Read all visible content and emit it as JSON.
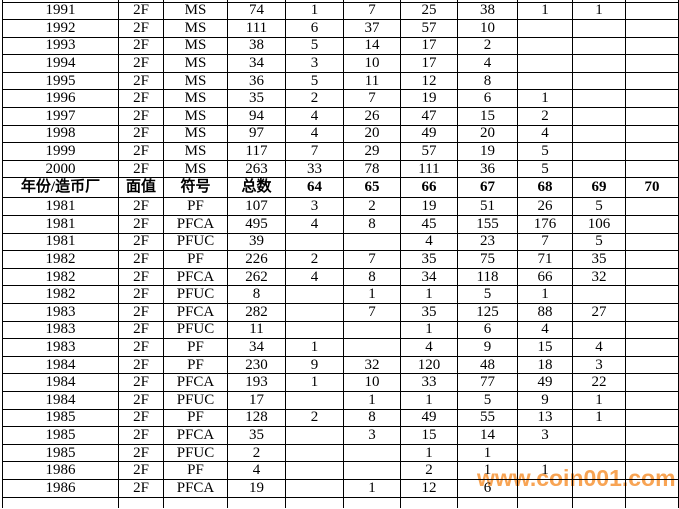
{
  "watermark": {
    "text": "www.coin001.com",
    "color": "#F8A04B"
  },
  "table": {
    "column_headers": [
      "年份/造币厂",
      "面值",
      "符号",
      "总数",
      "64",
      "65",
      "66",
      "67",
      "68",
      "69",
      "70"
    ],
    "rows": [
      {
        "header": false,
        "cells": [
          "1991",
          "2F",
          "MS",
          "74",
          "1",
          "7",
          "25",
          "38",
          "1",
          "1",
          ""
        ]
      },
      {
        "header": false,
        "cells": [
          "1992",
          "2F",
          "MS",
          "111",
          "6",
          "37",
          "57",
          "10",
          "",
          "",
          ""
        ]
      },
      {
        "header": false,
        "cells": [
          "1993",
          "2F",
          "MS",
          "38",
          "5",
          "14",
          "17",
          "2",
          "",
          "",
          ""
        ]
      },
      {
        "header": false,
        "cells": [
          "1994",
          "2F",
          "MS",
          "34",
          "3",
          "10",
          "17",
          "4",
          "",
          "",
          ""
        ]
      },
      {
        "header": false,
        "cells": [
          "1995",
          "2F",
          "MS",
          "36",
          "5",
          "11",
          "12",
          "8",
          "",
          "",
          ""
        ]
      },
      {
        "header": false,
        "cells": [
          "1996",
          "2F",
          "MS",
          "35",
          "2",
          "7",
          "19",
          "6",
          "1",
          "",
          ""
        ]
      },
      {
        "header": false,
        "cells": [
          "1997",
          "2F",
          "MS",
          "94",
          "4",
          "26",
          "47",
          "15",
          "2",
          "",
          ""
        ]
      },
      {
        "header": false,
        "cells": [
          "1998",
          "2F",
          "MS",
          "97",
          "4",
          "20",
          "49",
          "20",
          "4",
          "",
          ""
        ]
      },
      {
        "header": false,
        "cells": [
          "1999",
          "2F",
          "MS",
          "117",
          "7",
          "29",
          "57",
          "19",
          "5",
          "",
          ""
        ]
      },
      {
        "header": false,
        "cells": [
          "2000",
          "2F",
          "MS",
          "263",
          "33",
          "78",
          "111",
          "36",
          "5",
          "",
          ""
        ]
      },
      {
        "header": true,
        "cells": [
          "年份/造币厂",
          "面值",
          "符号",
          "总数",
          "64",
          "65",
          "66",
          "67",
          "68",
          "69",
          "70"
        ]
      },
      {
        "header": false,
        "cells": [
          "1981",
          "2F",
          "PF",
          "107",
          "3",
          "2",
          "19",
          "51",
          "26",
          "5",
          ""
        ]
      },
      {
        "header": false,
        "cells": [
          "1981",
          "2F",
          "PFCA",
          "495",
          "4",
          "8",
          "45",
          "155",
          "176",
          "106",
          ""
        ]
      },
      {
        "header": false,
        "cells": [
          "1981",
          "2F",
          "PFUC",
          "39",
          "",
          "",
          "4",
          "23",
          "7",
          "5",
          ""
        ]
      },
      {
        "header": false,
        "cells": [
          "1982",
          "2F",
          "PF",
          "226",
          "2",
          "7",
          "35",
          "75",
          "71",
          "35",
          ""
        ]
      },
      {
        "header": false,
        "cells": [
          "1982",
          "2F",
          "PFCA",
          "262",
          "4",
          "8",
          "34",
          "118",
          "66",
          "32",
          ""
        ]
      },
      {
        "header": false,
        "cells": [
          "1982",
          "2F",
          "PFUC",
          "8",
          "",
          "1",
          "1",
          "5",
          "1",
          "",
          ""
        ]
      },
      {
        "header": false,
        "cells": [
          "1983",
          "2F",
          "PFCA",
          "282",
          "",
          "7",
          "35",
          "125",
          "88",
          "27",
          ""
        ]
      },
      {
        "header": false,
        "cells": [
          "1983",
          "2F",
          "PFUC",
          "11",
          "",
          "",
          "1",
          "6",
          "4",
          "",
          ""
        ]
      },
      {
        "header": false,
        "cells": [
          "1983",
          "2F",
          "PF",
          "34",
          "1",
          "",
          "4",
          "9",
          "15",
          "4",
          ""
        ]
      },
      {
        "header": false,
        "cells": [
          "1984",
          "2F",
          "PF",
          "230",
          "9",
          "32",
          "120",
          "48",
          "18",
          "3",
          ""
        ]
      },
      {
        "header": false,
        "cells": [
          "1984",
          "2F",
          "PFCA",
          "193",
          "1",
          "10",
          "33",
          "77",
          "49",
          "22",
          ""
        ]
      },
      {
        "header": false,
        "cells": [
          "1984",
          "2F",
          "PFUC",
          "17",
          "",
          "1",
          "1",
          "5",
          "9",
          "1",
          ""
        ]
      },
      {
        "header": false,
        "cells": [
          "1985",
          "2F",
          "PF",
          "128",
          "2",
          "8",
          "49",
          "55",
          "13",
          "1",
          ""
        ]
      },
      {
        "header": false,
        "cells": [
          "1985",
          "2F",
          "PFCA",
          "35",
          "",
          "3",
          "15",
          "14",
          "3",
          "",
          ""
        ]
      },
      {
        "header": false,
        "cells": [
          "1985",
          "2F",
          "PFUC",
          "2",
          "",
          "",
          "1",
          "1",
          "",
          "",
          ""
        ]
      },
      {
        "header": false,
        "cells": [
          "1986",
          "2F",
          "PF",
          "4",
          "",
          "",
          "2",
          "1",
          "1",
          "",
          ""
        ]
      },
      {
        "header": false,
        "cells": [
          "1986",
          "2F",
          "PFCA",
          "19",
          "",
          "1",
          "12",
          "6",
          "",
          "",
          ""
        ]
      }
    ]
  }
}
